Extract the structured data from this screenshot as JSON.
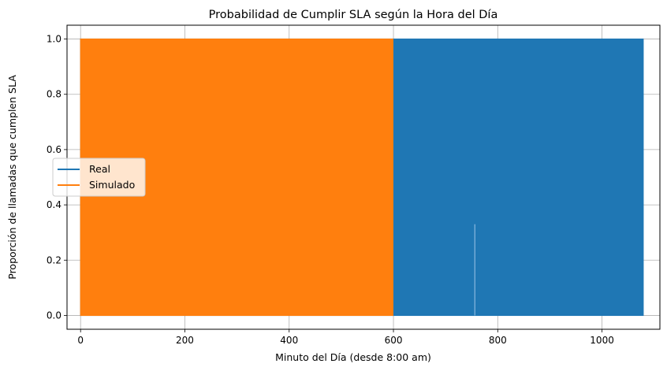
{
  "chart_data": {
    "type": "line",
    "title": "Probabilidad de Cumplir SLA según la Hora del Día",
    "xlabel": "Minuto del Día (desde 8:00 am)",
    "ylabel": "Proporción de llamadas que cumplen SLA",
    "xlim": [
      -26,
      1111
    ],
    "ylim": [
      -0.05,
      1.05
    ],
    "xticks": [
      0,
      200,
      400,
      600,
      800,
      1000
    ],
    "xtick_labels": [
      "0",
      "200",
      "400",
      "600",
      "800",
      "1000"
    ],
    "yticks": [
      0.0,
      0.2,
      0.4,
      0.6,
      0.8,
      1.0
    ],
    "ytick_labels": [
      "0.0",
      "0.2",
      "0.4",
      "0.6",
      "0.8",
      "1.0"
    ],
    "grid": true,
    "legend_position": "center-left",
    "series": [
      {
        "name": "Real",
        "color": "#1f77b4",
        "x_range": [
          0,
          1079
        ],
        "values_min": 0.0,
        "values_max": 1.0,
        "note_points": [
          {
            "x": 756,
            "y_low": 0.0,
            "y_high": 0.33
          }
        ]
      },
      {
        "name": "Simulado",
        "color": "#ff7f0e",
        "x_range": [
          0,
          599
        ],
        "values_min": 0.0,
        "values_max": 1.0
      }
    ]
  }
}
